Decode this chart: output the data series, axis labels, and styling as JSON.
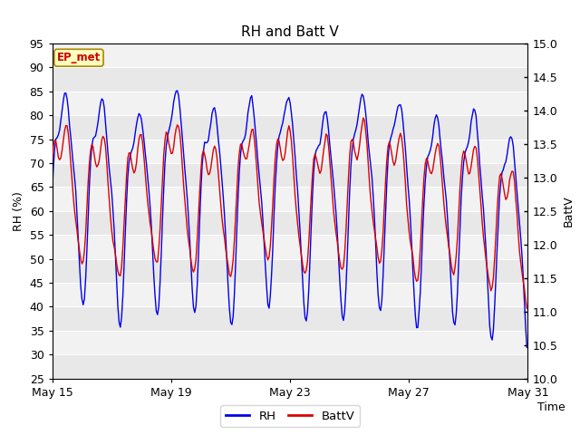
{
  "title": "RH and Batt V",
  "xlabel": "Time",
  "ylabel_left": "RH (%)",
  "ylabel_right": "BattV",
  "ylim_left": [
    25,
    95
  ],
  "ylim_right": [
    10.0,
    15.0
  ],
  "yticks_left": [
    25,
    30,
    35,
    40,
    45,
    50,
    55,
    60,
    65,
    70,
    75,
    80,
    85,
    90,
    95
  ],
  "yticks_right": [
    10.0,
    10.5,
    11.0,
    11.5,
    12.0,
    12.5,
    13.0,
    13.5,
    14.0,
    14.5,
    15.0
  ],
  "xtick_labels": [
    "May 15",
    "May 19",
    "May 23",
    "May 27",
    "May 31"
  ],
  "xtick_positions": [
    0,
    4,
    8,
    12,
    16
  ],
  "rh_color": "#0000EE",
  "battv_color": "#DD0000",
  "fig_bg_color": "#FFFFFF",
  "plot_bg_color": "#E8E8E8",
  "band_light_color": "#F2F2F2",
  "annotation_text": "EP_met",
  "annotation_color": "#CC0000",
  "annotation_bg": "#FFFFC0",
  "annotation_border": "#AA8800",
  "legend_rh_label": "RH",
  "legend_battv_label": "BattV",
  "title_fontsize": 11,
  "label_fontsize": 9,
  "tick_fontsize": 9,
  "rh_seed": 17,
  "battv_seed": 42
}
